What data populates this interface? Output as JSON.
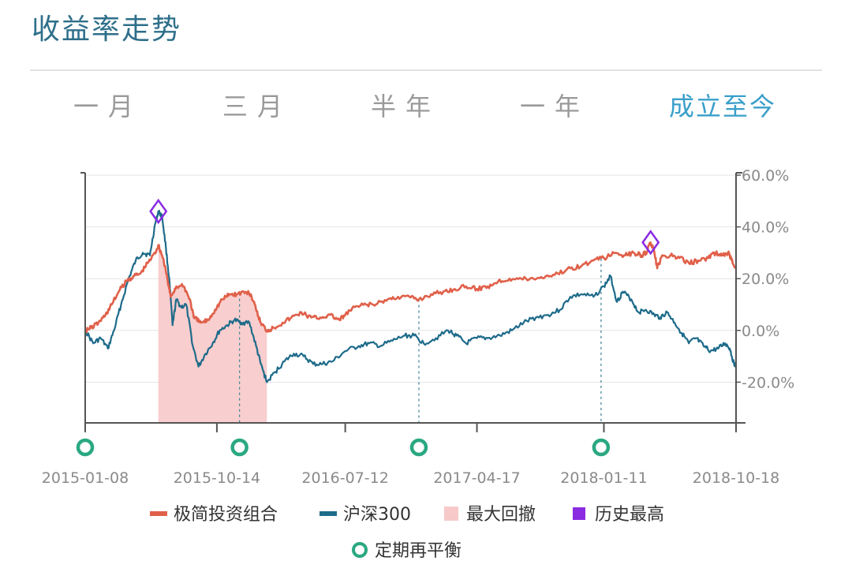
{
  "header": {
    "title": "收益率走势"
  },
  "range_tabs": [
    {
      "label": "一月",
      "active": false
    },
    {
      "label": "三月",
      "active": false
    },
    {
      "label": "半年",
      "active": false
    },
    {
      "label": "一年",
      "active": false
    },
    {
      "label": "成立至今",
      "active": true
    }
  ],
  "colors": {
    "portfolio": "#e0604a",
    "index": "#1e6b8a",
    "drawdown": "#f7c9c9",
    "peak_marker": "#8a2be2",
    "rebalance_marker": "#2aa882",
    "active_tab": "#3a9fca",
    "title": "#2e6f8a"
  },
  "chart_data": {
    "type": "line",
    "x_range": [
      "2015-01-08",
      "2018-10-18"
    ],
    "x_tick_labels": [
      "2015-01-08",
      "2015-10-14",
      "2016-07-12",
      "2017-04-17",
      "2018-01-11",
      "2018-10-18"
    ],
    "y_tick_labels": [
      "60.0%",
      "40.0%",
      "20.0%",
      "0.0%",
      "-20.0%"
    ],
    "y_unit": "%",
    "ylim": [
      -35,
      60
    ],
    "series": [
      {
        "name": "极简投资组合",
        "key": "portfolio",
        "points": [
          [
            "2015-01-08",
            0
          ],
          [
            "2015-01-20",
            1
          ],
          [
            "2015-02-05",
            3
          ],
          [
            "2015-02-20",
            6
          ],
          [
            "2015-03-05",
            10
          ],
          [
            "2015-03-20",
            15
          ],
          [
            "2015-04-05",
            19
          ],
          [
            "2015-04-20",
            21
          ],
          [
            "2015-05-05",
            22
          ],
          [
            "2015-05-20",
            26
          ],
          [
            "2015-06-05",
            30
          ],
          [
            "2015-06-12",
            33
          ],
          [
            "2015-06-22",
            28
          ],
          [
            "2015-07-01",
            20
          ],
          [
            "2015-07-08",
            13
          ],
          [
            "2015-07-20",
            17
          ],
          [
            "2015-08-05",
            17
          ],
          [
            "2015-08-18",
            12
          ],
          [
            "2015-08-26",
            5
          ],
          [
            "2015-09-10",
            3
          ],
          [
            "2015-09-25",
            4
          ],
          [
            "2015-10-10",
            8
          ],
          [
            "2015-10-25",
            12
          ],
          [
            "2015-11-10",
            14
          ],
          [
            "2015-11-25",
            14
          ],
          [
            "2015-12-10",
            15
          ],
          [
            "2015-12-25",
            14
          ],
          [
            "2016-01-05",
            8
          ],
          [
            "2016-01-15",
            3
          ],
          [
            "2016-01-28",
            0
          ],
          [
            "2016-02-10",
            1
          ],
          [
            "2016-03-01",
            3
          ],
          [
            "2016-03-20",
            5
          ],
          [
            "2016-04-10",
            7
          ],
          [
            "2016-05-01",
            5
          ],
          [
            "2016-05-20",
            5
          ],
          [
            "2016-06-10",
            6
          ],
          [
            "2016-06-30",
            4
          ],
          [
            "2016-07-12",
            6
          ],
          [
            "2016-08-01",
            9
          ],
          [
            "2016-08-25",
            10
          ],
          [
            "2016-09-15",
            10
          ],
          [
            "2016-10-10",
            12
          ],
          [
            "2016-11-01",
            13
          ],
          [
            "2016-11-25",
            13
          ],
          [
            "2016-12-15",
            12
          ],
          [
            "2017-01-10",
            14
          ],
          [
            "2017-02-05",
            15
          ],
          [
            "2017-03-01",
            16
          ],
          [
            "2017-03-25",
            17
          ],
          [
            "2017-04-17",
            16
          ],
          [
            "2017-05-10",
            17
          ],
          [
            "2017-06-01",
            19
          ],
          [
            "2017-06-25",
            20
          ],
          [
            "2017-07-20",
            20
          ],
          [
            "2017-08-15",
            20
          ],
          [
            "2017-09-10",
            21
          ],
          [
            "2017-10-05",
            22
          ],
          [
            "2017-11-01",
            24
          ],
          [
            "2017-11-25",
            25
          ],
          [
            "2017-12-20",
            27
          ],
          [
            "2018-01-11",
            28
          ],
          [
            "2018-02-05",
            30
          ],
          [
            "2018-02-25",
            29
          ],
          [
            "2018-03-15",
            30
          ],
          [
            "2018-04-01",
            29
          ],
          [
            "2018-04-10",
            30
          ],
          [
            "2018-04-20",
            34
          ],
          [
            "2018-04-28",
            30
          ],
          [
            "2018-05-04",
            24
          ],
          [
            "2018-05-12",
            28
          ],
          [
            "2018-06-01",
            29
          ],
          [
            "2018-06-20",
            28
          ],
          [
            "2018-07-10",
            26
          ],
          [
            "2018-07-30",
            27
          ],
          [
            "2018-08-20",
            28
          ],
          [
            "2018-09-05",
            30
          ],
          [
            "2018-09-20",
            29
          ],
          [
            "2018-10-01",
            30
          ],
          [
            "2018-10-10",
            27
          ],
          [
            "2018-10-18",
            24
          ]
        ]
      },
      {
        "name": "沪深300",
        "key": "index",
        "points": [
          [
            "2015-01-08",
            0
          ],
          [
            "2015-01-25",
            -5
          ],
          [
            "2015-02-10",
            -3
          ],
          [
            "2015-02-25",
            -7
          ],
          [
            "2015-03-10",
            0
          ],
          [
            "2015-03-25",
            10
          ],
          [
            "2015-04-10",
            20
          ],
          [
            "2015-04-25",
            27
          ],
          [
            "2015-05-10",
            30
          ],
          [
            "2015-05-25",
            29
          ],
          [
            "2015-06-05",
            41
          ],
          [
            "2015-06-12",
            46
          ],
          [
            "2015-06-20",
            44
          ],
          [
            "2015-06-28",
            32
          ],
          [
            "2015-07-06",
            18
          ],
          [
            "2015-07-12",
            2
          ],
          [
            "2015-07-20",
            12
          ],
          [
            "2015-07-30",
            9
          ],
          [
            "2015-08-10",
            10
          ],
          [
            "2015-08-24",
            -6
          ],
          [
            "2015-09-05",
            -14
          ],
          [
            "2015-09-20",
            -9
          ],
          [
            "2015-10-05",
            -5
          ],
          [
            "2015-10-20",
            0
          ],
          [
            "2015-11-05",
            2
          ],
          [
            "2015-11-20",
            4
          ],
          [
            "2015-12-05",
            3
          ],
          [
            "2015-12-22",
            3
          ],
          [
            "2016-01-05",
            -6
          ],
          [
            "2016-01-15",
            -13
          ],
          [
            "2016-01-28",
            -20
          ],
          [
            "2016-02-15",
            -16
          ],
          [
            "2016-03-05",
            -12
          ],
          [
            "2016-03-25",
            -9
          ],
          [
            "2016-04-15",
            -10
          ],
          [
            "2016-05-05",
            -13
          ],
          [
            "2016-05-25",
            -13
          ],
          [
            "2016-06-15",
            -12
          ],
          [
            "2016-07-12",
            -8
          ],
          [
            "2016-08-10",
            -6
          ],
          [
            "2016-09-01",
            -5
          ],
          [
            "2016-09-25",
            -6
          ],
          [
            "2016-10-20",
            -4
          ],
          [
            "2016-11-15",
            -2
          ],
          [
            "2016-12-05",
            -2
          ],
          [
            "2016-12-25",
            -5
          ],
          [
            "2017-01-20",
            -3
          ],
          [
            "2017-02-15",
            0
          ],
          [
            "2017-03-05",
            -2
          ],
          [
            "2017-03-25",
            -5
          ],
          [
            "2017-04-17",
            -3
          ],
          [
            "2017-05-10",
            -3
          ],
          [
            "2017-06-05",
            -2
          ],
          [
            "2017-06-30",
            0
          ],
          [
            "2017-07-25",
            3
          ],
          [
            "2017-08-20",
            5
          ],
          [
            "2017-09-15",
            6
          ],
          [
            "2017-10-10",
            8
          ],
          [
            "2017-11-01",
            13
          ],
          [
            "2017-11-25",
            14
          ],
          [
            "2017-12-20",
            13
          ],
          [
            "2018-01-11",
            17
          ],
          [
            "2018-01-25",
            21
          ],
          [
            "2018-02-08",
            11
          ],
          [
            "2018-02-20",
            15
          ],
          [
            "2018-03-10",
            12
          ],
          [
            "2018-03-25",
            7
          ],
          [
            "2018-04-10",
            8
          ],
          [
            "2018-04-28",
            6
          ],
          [
            "2018-05-10",
            5
          ],
          [
            "2018-05-25",
            7
          ],
          [
            "2018-06-10",
            3
          ],
          [
            "2018-06-25",
            -1
          ],
          [
            "2018-07-10",
            -5
          ],
          [
            "2018-07-25",
            -3
          ],
          [
            "2018-08-10",
            -6
          ],
          [
            "2018-08-25",
            -8
          ],
          [
            "2018-09-10",
            -7
          ],
          [
            "2018-09-25",
            -5
          ],
          [
            "2018-10-05",
            -7
          ],
          [
            "2018-10-12",
            -12
          ],
          [
            "2018-10-18",
            -14
          ]
        ]
      }
    ],
    "max_drawdown": {
      "name": "最大回撤",
      "start": "2015-06-12",
      "end": "2016-01-28"
    },
    "historical_highs": {
      "name": "历史最高",
      "points": [
        {
          "series": "index",
          "date": "2015-06-12",
          "value": 46
        },
        {
          "series": "portfolio",
          "date": "2018-04-20",
          "value": 34
        }
      ]
    },
    "rebalance": {
      "name": "定期再平衡",
      "dates": [
        "2015-01-08",
        "2015-12-01",
        "2016-12-15",
        "2018-01-05"
      ]
    },
    "legend": [
      {
        "label": "极简投资组合",
        "key": "portfolio",
        "shape": "line"
      },
      {
        "label": "沪深300",
        "key": "index",
        "shape": "line"
      },
      {
        "label": "最大回撤",
        "key": "drawdown",
        "shape": "rect"
      },
      {
        "label": "历史最高",
        "key": "peak_marker",
        "shape": "square"
      },
      {
        "label": "定期再平衡",
        "key": "rebalance_marker",
        "shape": "ring"
      }
    ]
  }
}
